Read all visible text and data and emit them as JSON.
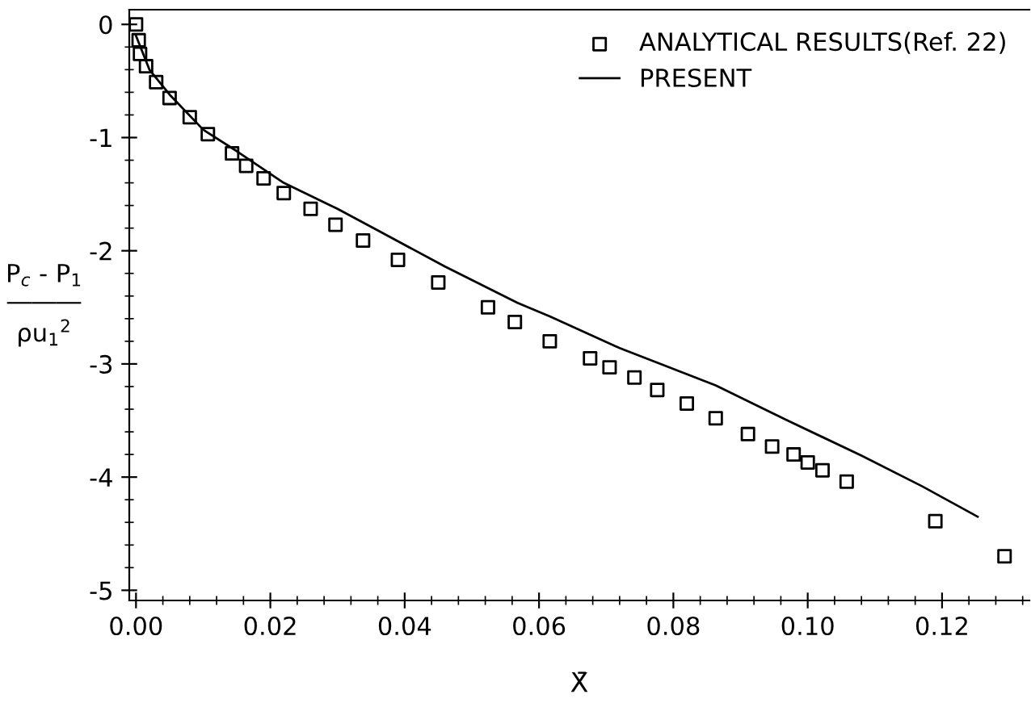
{
  "chart_data": {
    "type": "scatter",
    "xlabel": "X̄",
    "ylabel": "P$_{c}$ - P$_{1}$\n―――\nρu$_{1}$$^{2}$",
    "xlim": [
      -0.001,
      0.133
    ],
    "ylim": [
      -5.09,
      0.13
    ],
    "xticks": [
      {
        "value": 0,
        "label": "0.00"
      },
      {
        "value": 0.02,
        "label": "0.02"
      },
      {
        "value": 0.04,
        "label": "0.04"
      },
      {
        "value": 0.06,
        "label": "0.06"
      },
      {
        "value": 0.08,
        "label": "0.08"
      },
      {
        "value": 0.1,
        "label": "0.10"
      },
      {
        "value": 0.12,
        "label": "0.12"
      }
    ],
    "yticks": [
      {
        "value": 0,
        "label": "0"
      },
      {
        "value": -1,
        "label": "-1"
      },
      {
        "value": -2,
        "label": "-2"
      },
      {
        "value": -3,
        "label": "-3"
      },
      {
        "value": -4,
        "label": "-4"
      },
      {
        "value": -5,
        "label": "-5"
      }
    ],
    "grid": false,
    "legend": "top right",
    "series": [
      {
        "name": "ANALYTICAL RESULTS(Ref. 22)",
        "marker": "square",
        "color": "#000000",
        "x": [
          0,
          0.0004,
          0.0006,
          0.0015,
          0.003,
          0.005,
          0.008,
          0.0107,
          0.0143,
          0.0164,
          0.019,
          0.022,
          0.026,
          0.0297,
          0.0338,
          0.039,
          0.045,
          0.0524,
          0.0564,
          0.0616,
          0.0676,
          0.0705,
          0.0742,
          0.0776,
          0.082,
          0.0863,
          0.0911,
          0.0947,
          0.0979,
          0.1,
          0.1022,
          0.1058,
          0.119,
          0.1293
        ],
        "values": [
          0,
          -0.14,
          -0.26,
          -0.37,
          -0.51,
          -0.65,
          -0.82,
          -0.97,
          -1.14,
          -1.25,
          -1.36,
          -1.49,
          -1.63,
          -1.77,
          -1.91,
          -2.08,
          -2.28,
          -2.5,
          -2.63,
          -2.8,
          -2.95,
          -3.03,
          -3.12,
          -3.23,
          -3.35,
          -3.48,
          -3.62,
          -3.73,
          -3.8,
          -3.87,
          -3.94,
          -4.04,
          -4.39,
          -4.7
        ]
      },
      {
        "name": "PRESENT",
        "type": "line",
        "marker": "none",
        "line_style": "solid",
        "color": "#000000",
        "x": [
          0,
          0.001,
          0.002,
          0.005,
          0.01,
          0.015,
          0.022,
          0.03,
          0.036,
          0.046,
          0.0568,
          0.0616,
          0.072,
          0.0863,
          0.097,
          0.108,
          0.117,
          0.1253
        ],
        "values": [
          -0.1,
          -0.25,
          -0.4,
          -0.62,
          -0.93,
          -1.12,
          -1.4,
          -1.63,
          -1.82,
          -2.14,
          -2.46,
          -2.58,
          -2.86,
          -3.19,
          -3.5,
          -3.81,
          -4.08,
          -4.35
        ]
      }
    ]
  }
}
